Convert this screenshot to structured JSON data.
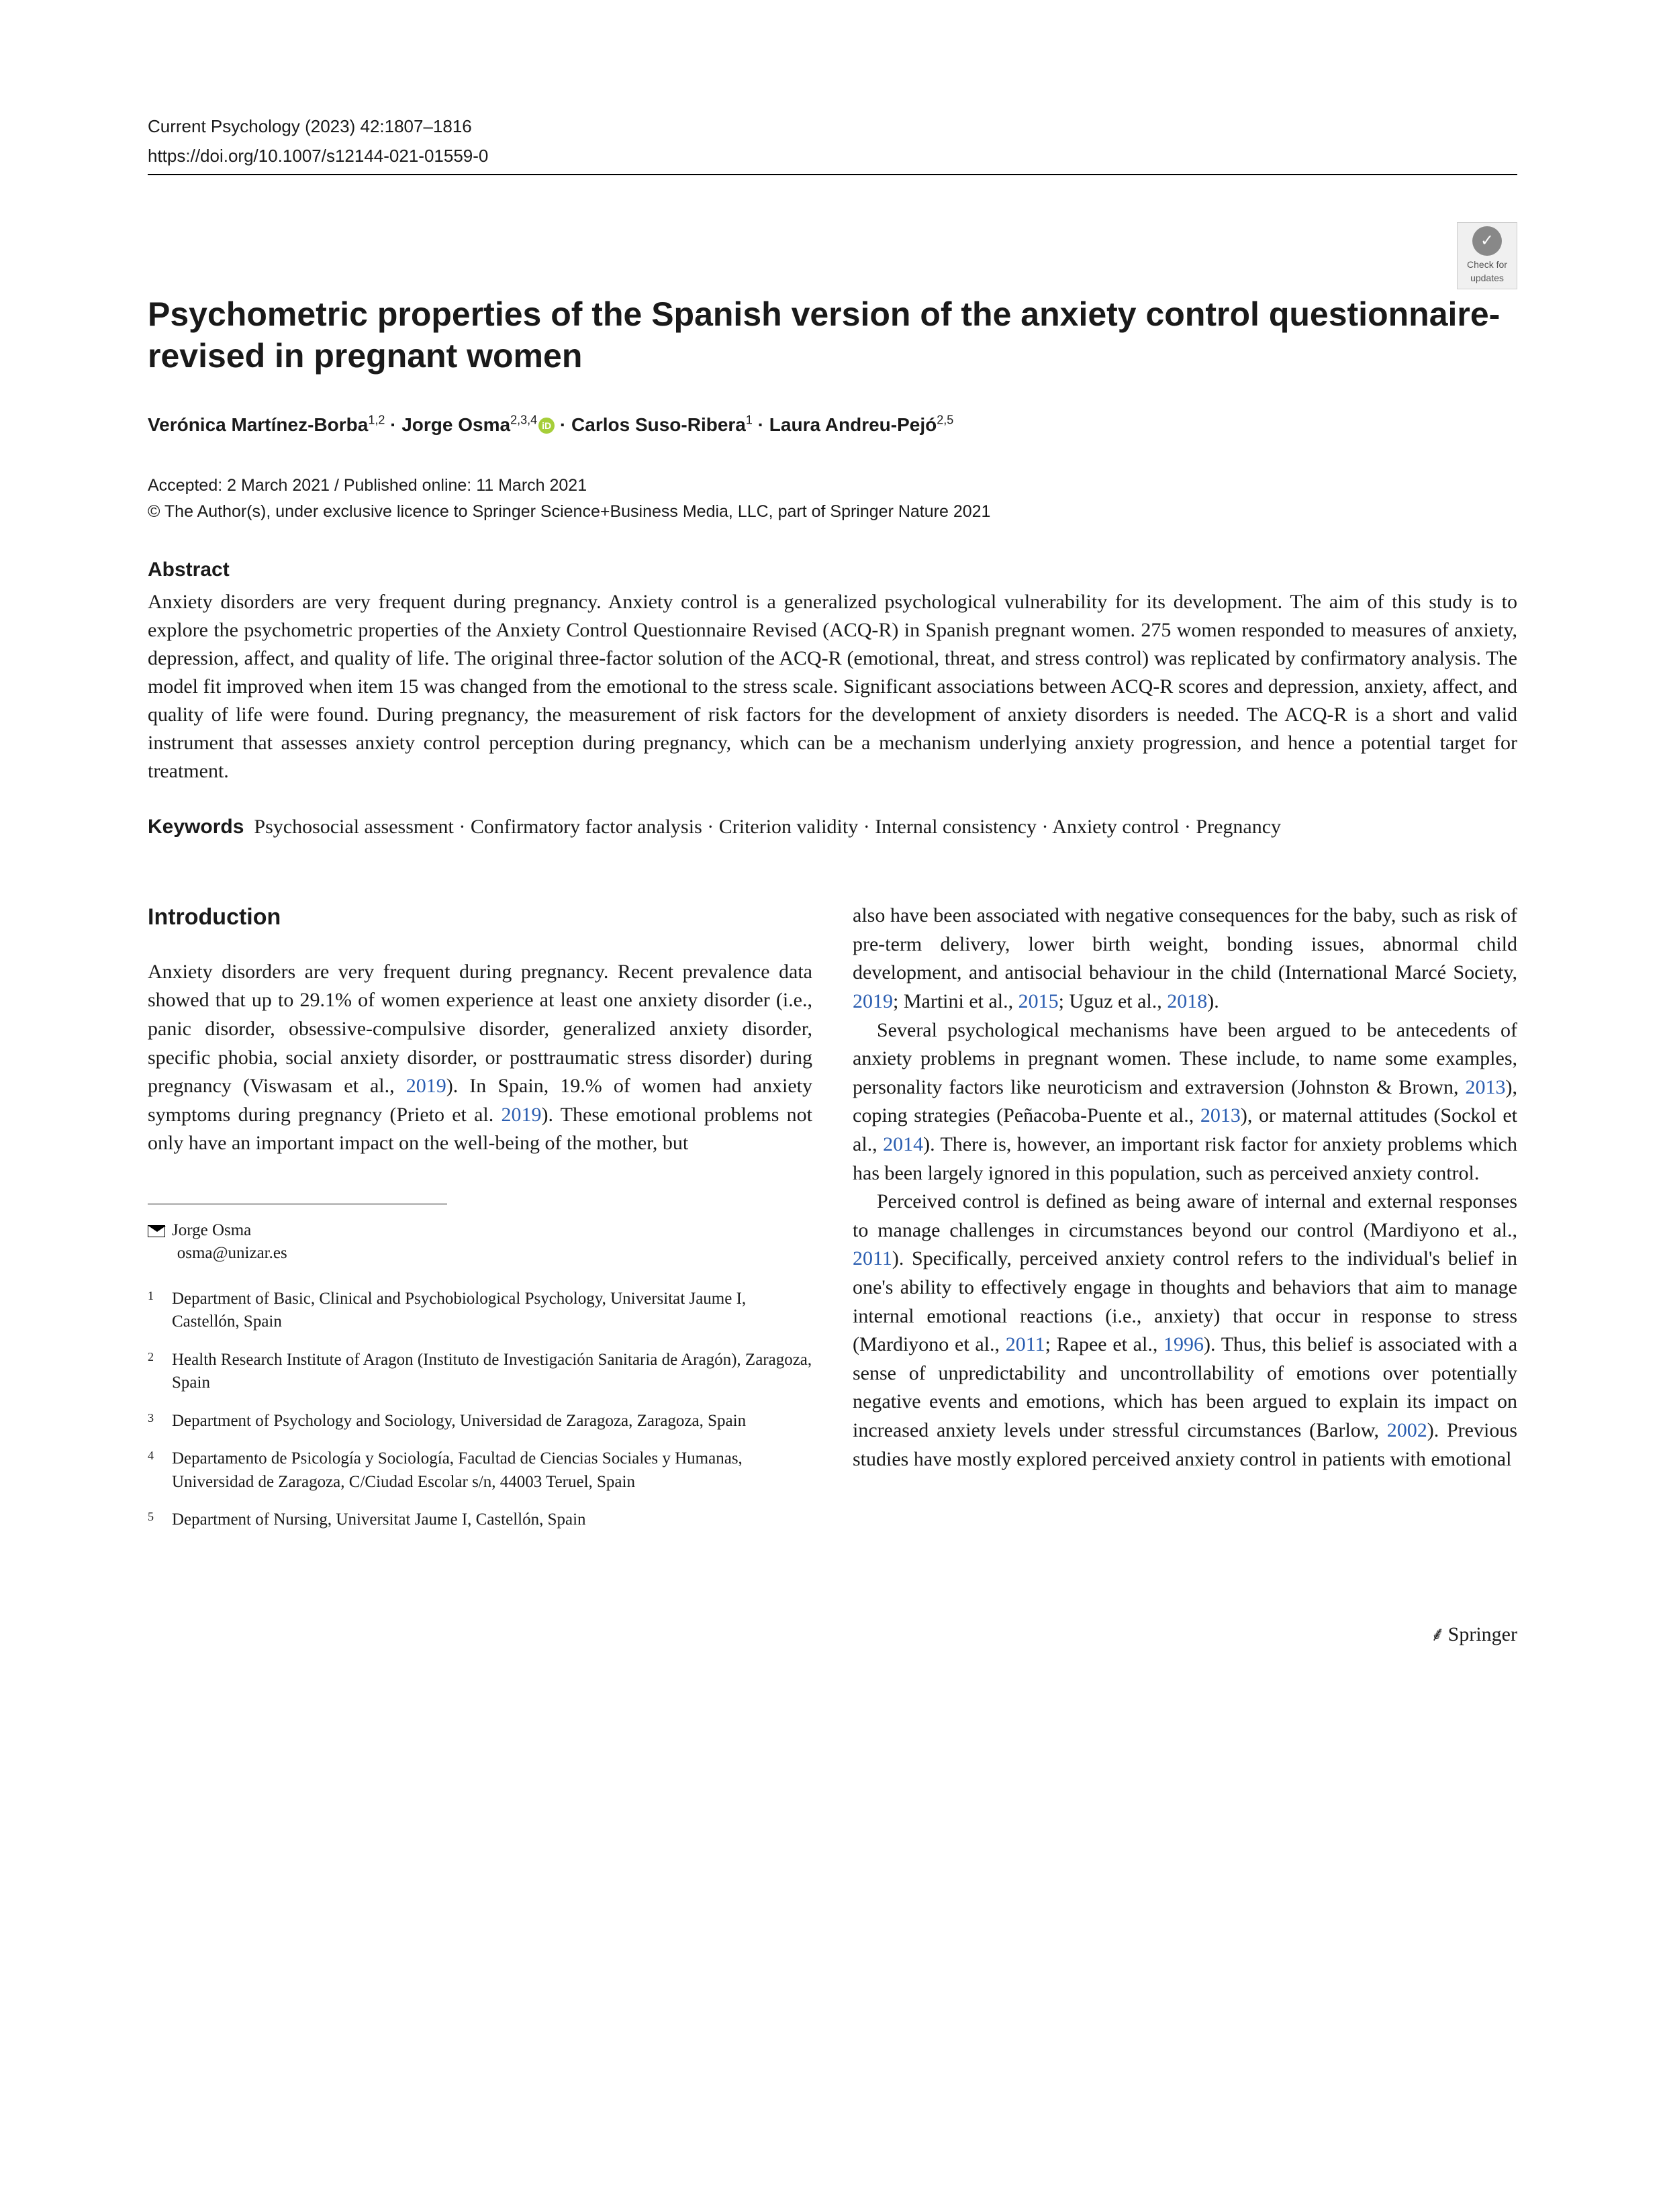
{
  "journal_line": "Current Psychology (2023) 42:1807–1816",
  "doi_line": "https://doi.org/10.1007/s12144-021-01559-0",
  "badge": {
    "label": "Check for updates"
  },
  "title": "Psychometric properties of the Spanish version of the anxiety control questionnaire-revised in pregnant women",
  "authors": {
    "a1": {
      "name": "Verónica Martínez-Borba",
      "aff": "1,2"
    },
    "a2": {
      "name": "Jorge Osma",
      "aff": "2,3,4"
    },
    "a3": {
      "name": "Carlos Suso-Ribera",
      "aff": "1"
    },
    "a4": {
      "name": "Laura Andreu-Pejó",
      "aff": "2,5"
    },
    "sep": " · "
  },
  "dates": "Accepted: 2 March 2021 / Published online: 11 March 2021",
  "copyright": "© The Author(s), under exclusive licence to Springer Science+Business Media, LLC, part of Springer Nature 2021",
  "abstract_heading": "Abstract",
  "abstract": "Anxiety disorders are very frequent during pregnancy. Anxiety control is a generalized psychological vulnerability for its development. The aim of this study is to explore the psychometric properties of the Anxiety Control Questionnaire Revised (ACQ-R) in Spanish pregnant women. 275 women responded to measures of anxiety, depression, affect, and quality of life. The original three-factor solution of the ACQ-R (emotional, threat, and stress control) was replicated by confirmatory analysis. The model fit improved when item 15 was changed from the emotional to the stress scale. Significant associations between ACQ-R scores and depression, anxiety, affect, and quality of life were found. During pregnancy, the measurement of risk factors for the development of anxiety disorders is needed. The ACQ-R is a short and valid instrument that assesses anxiety control perception during pregnancy, which can be a mechanism underlying anxiety progression, and hence a potential target for treatment.",
  "keywords_label": "Keywords",
  "keywords": "Psychosocial assessment · Confirmatory factor analysis · Criterion validity · Internal consistency · Anxiety control · Pregnancy",
  "intro_heading": "Introduction",
  "left": {
    "p1a": "Anxiety disorders are very frequent during pregnancy. Recent prevalence data showed that up to 29.1% of women experience at least one anxiety disorder (i.e., panic disorder, obsessive-compulsive disorder, generalized anxiety disorder, specific phobia, social anxiety disorder, or posttraumatic stress disorder) during pregnancy (Viswasam et al., ",
    "p1_cite1": "2019",
    "p1b": "). In Spain, 19.% of women had anxiety symptoms during pregnancy (Prieto et al. ",
    "p1_cite2": "2019",
    "p1c": "). These emotional problems not only have an important impact on the well-being of the mother, but"
  },
  "right": {
    "p1a": "also have been associated with negative consequences for the baby, such as risk of pre-term delivery, lower birth weight, bonding issues, abnormal child development, and antisocial behaviour in the child (International Marcé Society, ",
    "p1_c1": "2019",
    "p1b": "; Martini et al., ",
    "p1_c2": "2015",
    "p1c": "; Uguz et al., ",
    "p1_c3": "2018",
    "p1d": ").",
    "p2a": "Several psychological mechanisms have been argued to be antecedents of anxiety problems in pregnant women. These include, to name some examples, personality factors like neuroticism and extraversion (Johnston & Brown, ",
    "p2_c1": "2013",
    "p2b": "), coping strategies (Peñacoba-Puente et al., ",
    "p2_c2": "2013",
    "p2c": "), or maternal attitudes (Sockol et al., ",
    "p2_c3": "2014",
    "p2d": "). There is, however, an important risk factor for anxiety problems which has been largely ignored in this population, such as perceived anxiety control.",
    "p3a": "Perceived control is defined as being aware of internal and external responses to manage challenges in circumstances beyond our control (Mardiyono et al., ",
    "p3_c1": "2011",
    "p3b": "). Specifically, perceived anxiety control refers to the individual's belief in one's ability to effectively engage in thoughts and behaviors that aim to manage internal emotional reactions (i.e., anxiety) that occur in response to stress (Mardiyono et al., ",
    "p3_c2": "2011",
    "p3c": "; Rapee et al., ",
    "p3_c3": "1996",
    "p3d": "). Thus, this belief is associated with a sense of unpredictability and uncontrollability of emotions over potentially negative events and emotions, which has been argued to explain its impact on increased anxiety levels under stressful circumstances (Barlow, ",
    "p3_c4": "2002",
    "p3e": "). Previous studies have mostly explored perceived anxiety control in patients with emotional"
  },
  "corr": {
    "name": "Jorge Osma",
    "email": "osma@unizar.es"
  },
  "aff": {
    "n1": "1",
    "t1": "Department of Basic, Clinical and Psychobiological Psychology, Universitat Jaume I, Castellón, Spain",
    "n2": "2",
    "t2": "Health Research Institute of Aragon (Instituto de Investigación Sanitaria de Aragón), Zaragoza, Spain",
    "n3": "3",
    "t3": "Department of Psychology and Sociology, Universidad de Zaragoza, Zaragoza, Spain",
    "n4": "4",
    "t4": "Departamento de Psicología y Sociología, Facultad de Ciencias Sociales y Humanas, Universidad de Zaragoza, C/Ciudad Escolar s/n, 44003 Teruel, Spain",
    "n5": "5",
    "t5": "Department of Nursing, Universitat Jaume I, Castellón, Spain"
  },
  "publisher": "Springer",
  "publisher_symbol": "⸙"
}
